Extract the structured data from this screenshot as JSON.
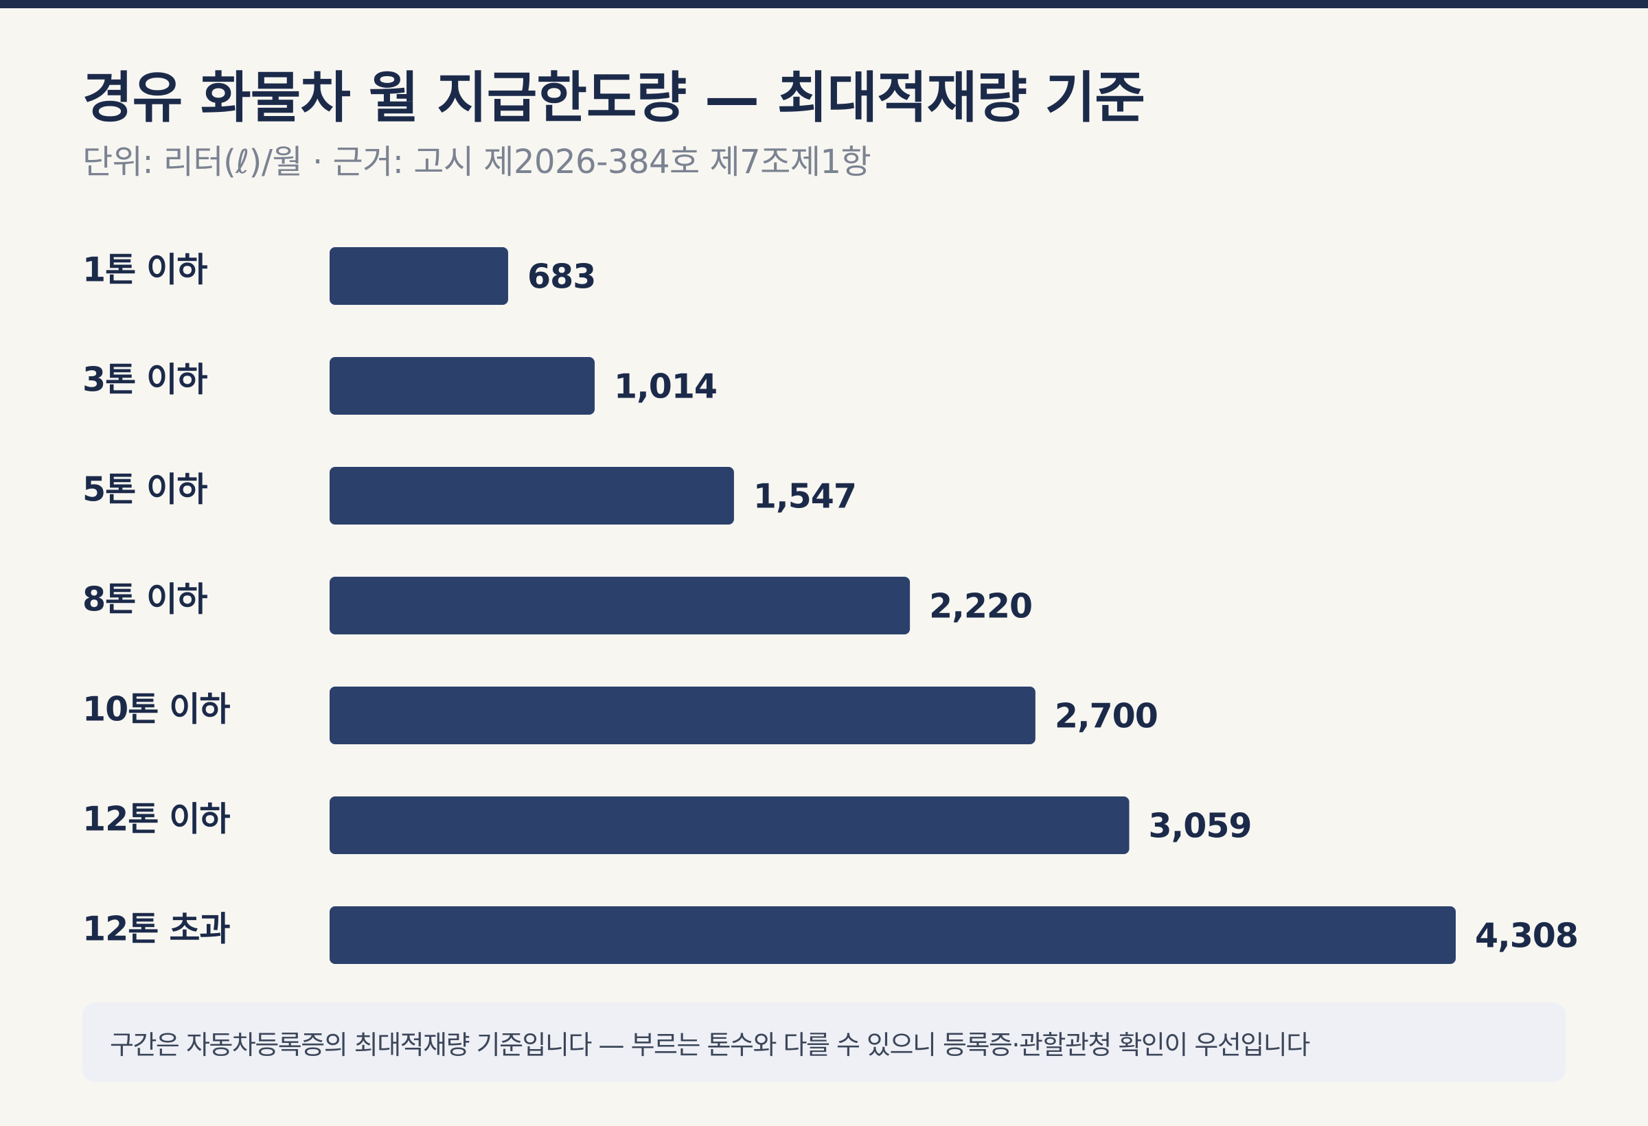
{
  "title": "경유 화물차 월 지급한도량 — 최대적재량 기준",
  "subtitle": "단위: 리터(ℓ)/월 · 근거: 고시 제2026-384호 제7조제1항",
  "note": "구간은 자동차등록증의 최대적재량 기준입니다 — 부르는 톤수와 다를 수 있으니 등록증·관할관청 확인이 우선입니다",
  "colors": {
    "bar": "#2b416c",
    "background": "#f7f6f1",
    "note_background": "#eef0f6"
  },
  "chart_data": {
    "type": "bar",
    "orientation": "horizontal",
    "title": "경유 화물차 월 지급한도량 — 최대적재량 기준",
    "unit": "리터(ℓ)/월",
    "categories": [
      "1톤 이하",
      "3톤 이하",
      "5톤 이하",
      "8톤 이하",
      "10톤 이하",
      "12톤 이하",
      "12톤 초과"
    ],
    "values": [
      683,
      1014,
      1547,
      2220,
      2700,
      3059,
      4308
    ],
    "value_labels": [
      "683",
      "1,014",
      "1,547",
      "2,220",
      "2,700",
      "3,059",
      "4,308"
    ],
    "xlim": [
      0,
      4308
    ],
    "grid": false,
    "legend": "none"
  }
}
